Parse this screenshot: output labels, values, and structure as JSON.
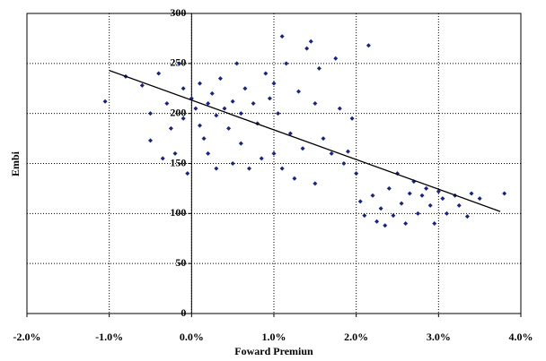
{
  "chart_data": {
    "type": "scatter",
    "xlabel": "Foward Premiun",
    "ylabel": "Embi",
    "x": [
      -1.05,
      -0.8,
      -0.6,
      -0.5,
      -0.5,
      -0.4,
      -0.35,
      -0.3,
      -0.25,
      -0.2,
      -0.15,
      -0.1,
      -0.1,
      -0.05,
      0,
      0.05,
      0.1,
      0.1,
      0.15,
      0.2,
      0.2,
      0.25,
      0.3,
      0.3,
      0.35,
      0.4,
      0.45,
      0.5,
      0.5,
      0.55,
      0.6,
      0.6,
      0.65,
      0.7,
      0.75,
      0.8,
      0.85,
      0.9,
      0.95,
      1.0,
      1.0,
      1.05,
      1.1,
      1.1,
      1.15,
      1.2,
      1.25,
      1.3,
      1.35,
      1.4,
      1.45,
      1.5,
      1.5,
      1.55,
      1.6,
      1.7,
      1.75,
      1.8,
      1.85,
      1.9,
      1.95,
      2.0,
      2.05,
      2.1,
      2.15,
      2.2,
      2.25,
      2.3,
      2.35,
      2.4,
      2.45,
      2.5,
      2.55,
      2.6,
      2.65,
      2.7,
      2.75,
      2.8,
      2.85,
      2.9,
      2.95,
      3.0,
      3.05,
      3.1,
      3.2,
      3.25,
      3.35,
      3.4,
      3.5,
      3.8
    ],
    "y": [
      212,
      237,
      228,
      200,
      173,
      240,
      155,
      210,
      185,
      160,
      250,
      225,
      195,
      140,
      215,
      205,
      230,
      188,
      175,
      210,
      160,
      220,
      198,
      145,
      235,
      205,
      185,
      212,
      150,
      250,
      200,
      170,
      225,
      145,
      210,
      190,
      155,
      240,
      215,
      230,
      160,
      200,
      277,
      145,
      250,
      180,
      135,
      222,
      165,
      265,
      272,
      130,
      210,
      245,
      175,
      160,
      255,
      205,
      150,
      162,
      195,
      140,
      112,
      98,
      268,
      118,
      92,
      105,
      88,
      125,
      98,
      140,
      110,
      90,
      120,
      132,
      100,
      118,
      125,
      108,
      90,
      122,
      115,
      100,
      118,
      108,
      97,
      120,
      115,
      120
    ],
    "color": "#1a237e",
    "trend": {
      "x": [
        -1.0,
        3.75
      ],
      "y": [
        243,
        102
      ],
      "color": "#000000"
    },
    "xlim": [
      -2,
      4
    ],
    "ylim": [
      0,
      300
    ],
    "xticks": [
      {
        "value": -2,
        "label": "-2.0%"
      },
      {
        "value": -1,
        "label": "-1.0%"
      },
      {
        "value": 0,
        "label": "0.0%"
      },
      {
        "value": 1,
        "label": "1.0%"
      },
      {
        "value": 2,
        "label": "2.0%"
      },
      {
        "value": 3,
        "label": "3.0%"
      },
      {
        "value": 4,
        "label": "4.0%"
      }
    ],
    "yticks": [
      0,
      50,
      100,
      150,
      200,
      250,
      300
    ],
    "grid": true
  }
}
